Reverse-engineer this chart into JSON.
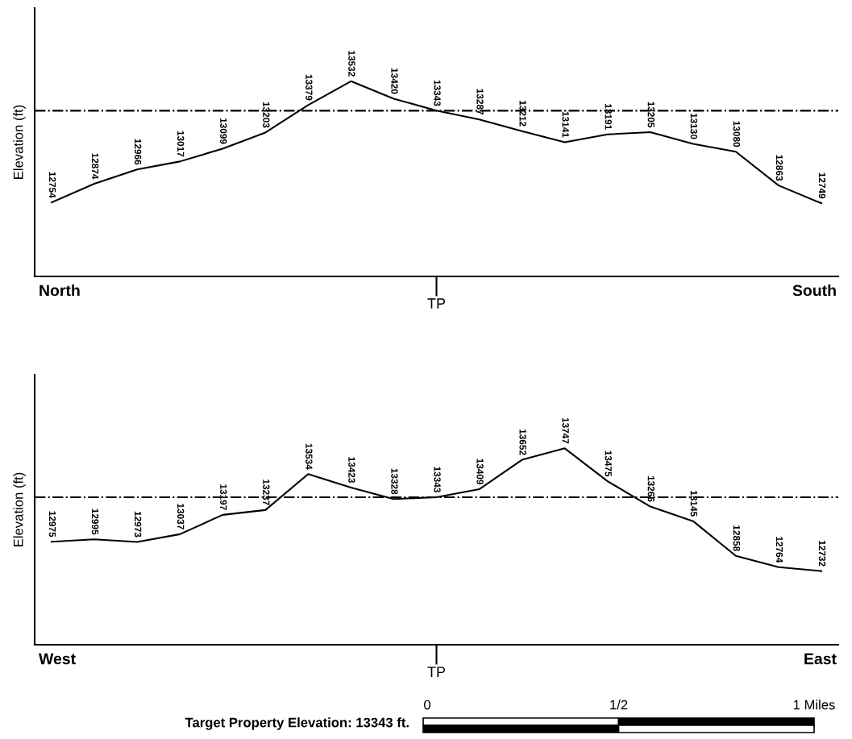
{
  "chart_data": [
    {
      "type": "line",
      "ylabel": "Elevation (ft)",
      "categories": [
        null,
        null,
        null,
        null,
        null,
        null,
        null,
        null,
        null,
        null,
        null,
        null,
        null,
        null,
        null,
        null,
        null,
        null,
        null
      ],
      "series": [
        {
          "color": "#000000",
          "values": [
            12754,
            12874,
            12966,
            13017,
            13099,
            13203,
            13379,
            13532,
            13420,
            13343,
            13287,
            13212,
            13141,
            13191,
            13205,
            13130,
            13080,
            12863,
            12749
          ]
        }
      ],
      "data_labels": true,
      "marker": "none",
      "line_style": "solid",
      "ref_lines": [
        {
          "axis": "y",
          "value": 13343,
          "color": "#000000",
          "line_style": "dashdot"
        }
      ],
      "annotations": [
        "North",
        "South",
        "TP"
      ]
    },
    {
      "type": "line",
      "ylabel": "Elevation (ft)",
      "categories": [
        null,
        null,
        null,
        null,
        null,
        null,
        null,
        null,
        null,
        null,
        null,
        null,
        null,
        null,
        null,
        null,
        null,
        null,
        null
      ],
      "series": [
        {
          "color": "#000000",
          "values": [
            12975,
            12995,
            12973,
            13037,
            13197,
            13237,
            13534,
            13423,
            13328,
            13343,
            13409,
            13652,
            13747,
            13475,
            13266,
            13145,
            12858,
            12764,
            12732
          ]
        }
      ],
      "data_labels": true,
      "marker": "none",
      "line_style": "solid",
      "ref_lines": [
        {
          "axis": "y",
          "value": 13343,
          "color": "#000000",
          "line_style": "dashdot"
        }
      ],
      "annotations": [
        "West",
        "East",
        "TP",
        "Target Property Elevation: 13343 ft.",
        "0",
        "1/2",
        "1 Miles"
      ]
    }
  ]
}
